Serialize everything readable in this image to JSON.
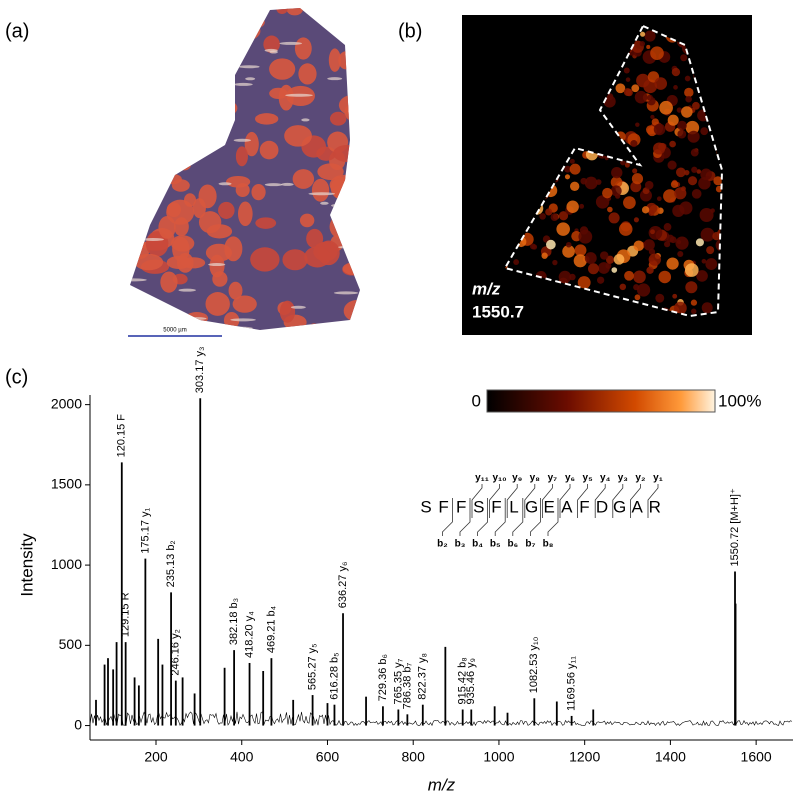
{
  "panels": {
    "a": "(a)",
    "b": "(b)",
    "c": "(c)"
  },
  "scale_bar": "5000 µm",
  "ion_image": {
    "mz_label": "m/z",
    "mz_value": "1550.7"
  },
  "colorbar": {
    "ticks": [
      {
        "value": 0,
        "label": "0"
      },
      {
        "value": 100,
        "label": "100%"
      }
    ]
  },
  "peptide": {
    "sequence": [
      "S",
      "F",
      "F",
      "S",
      "F",
      "L",
      "G",
      "E",
      "A",
      "F",
      "D",
      "G",
      "A",
      "R"
    ],
    "y_ions": [
      "y₁₁",
      "y₁₀",
      "y₉",
      "y₈",
      "y₇",
      "y₆",
      "y₅",
      "y₄",
      "y₃",
      "y₂",
      "y₁"
    ],
    "b_ions": [
      "b₂",
      "b₃",
      "b₄",
      "b₅",
      "b₆",
      "b₇",
      "b₈"
    ]
  },
  "chart_data": {
    "type": "stem",
    "x_label": "m/z",
    "y_label": "Intensity",
    "x": [
      60,
      80,
      88,
      100,
      108,
      120.15,
      129.15,
      150,
      160,
      175.17,
      205,
      215,
      235.13,
      246.16,
      262,
      290,
      303.17,
      360,
      382.18,
      418.2,
      450,
      469.21,
      520,
      565.27,
      600,
      616.28,
      636.27,
      690,
      729.36,
      765.35,
      786.38,
      822.37,
      875,
      915.42,
      935.46,
      990,
      1020,
      1082.53,
      1135,
      1169.56,
      1220,
      1550.72,
      1552
    ],
    "values": [
      160,
      380,
      420,
      350,
      520,
      1640,
      520,
      300,
      250,
      1040,
      540,
      380,
      830,
      280,
      300,
      200,
      2040,
      360,
      470,
      390,
      340,
      420,
      160,
      190,
      140,
      130,
      700,
      180,
      120,
      100,
      70,
      130,
      490,
      100,
      100,
      120,
      80,
      170,
      150,
      60,
      100,
      960,
      760
    ],
    "peak_labels": [
      null,
      null,
      null,
      null,
      null,
      "120.15 F",
      "129.15 R",
      null,
      null,
      "175.17 y₁",
      null,
      null,
      "235.13 b₂",
      "246.16 y₂",
      null,
      null,
      "303.17 y₃",
      null,
      "382.18 b₃",
      "418.20 y₄",
      null,
      "469.21 b₄",
      null,
      "565.27 y₅",
      null,
      "616.28 b₅",
      "636.27 y₆",
      null,
      "729.36 b₆",
      "765.35 y₇",
      "786.38 b₇",
      "822.37 y₈",
      null,
      "915.42 b₈",
      "935.46 y₉",
      null,
      null,
      "1082.53 y₁₀",
      null,
      "1169.56 y₁₁",
      null,
      "1550.72 [M+H]⁺",
      null
    ],
    "color": "#000000",
    "xlim": [
      46,
      1686
    ],
    "ylim": [
      -90,
      2060
    ],
    "xticks": [
      200,
      400,
      600,
      800,
      1000,
      1200,
      1400,
      1600
    ],
    "yticks": [
      0,
      500,
      1000,
      1500,
      2000
    ]
  }
}
